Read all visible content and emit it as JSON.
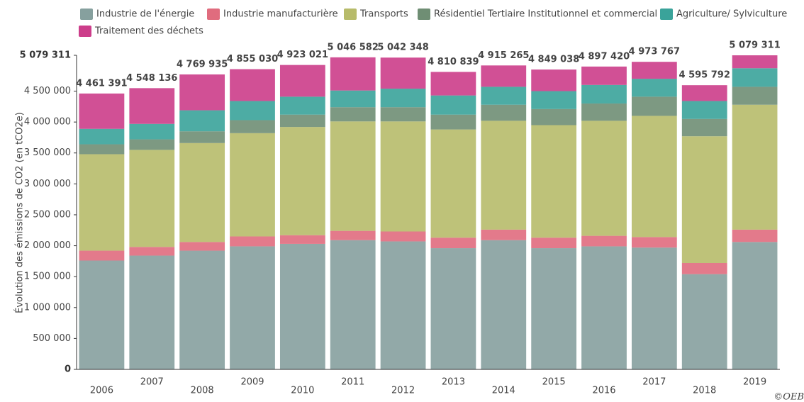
{
  "chart_data": {
    "type": "stacked_bar",
    "y_axis_label": "Évolution des émissions de CO2 (en tCO2e)",
    "copyright": "©OEB",
    "categories": [
      "2006",
      "2007",
      "2008",
      "2009",
      "2010",
      "2011",
      "2012",
      "2013",
      "2014",
      "2015",
      "2016",
      "2017",
      "2018",
      "2019"
    ],
    "series": [
      {
        "name": "Industrie de l'énergie",
        "color": "#86a09e",
        "values": [
          1760000,
          1840000,
          1920000,
          1990000,
          2030000,
          2090000,
          2070000,
          1960000,
          2090000,
          1960000,
          1990000,
          1970000,
          1540000,
          2060000
        ]
      },
      {
        "name": "Industrie manufacturière",
        "color": "#e06c7e",
        "values": [
          160000,
          140000,
          140000,
          160000,
          140000,
          150000,
          160000,
          170000,
          170000,
          170000,
          170000,
          170000,
          180000,
          200000
        ]
      },
      {
        "name": "Transports",
        "color": "#b7bb6a",
        "values": [
          1560000,
          1570000,
          1600000,
          1670000,
          1750000,
          1770000,
          1780000,
          1750000,
          1760000,
          1820000,
          1860000,
          1960000,
          2050000,
          2020000
        ]
      },
      {
        "name": "Résidentiel Tertiaire Institutionnel et commercial",
        "color": "#6f8e74",
        "values": [
          160000,
          170000,
          190000,
          210000,
          200000,
          230000,
          230000,
          240000,
          260000,
          260000,
          280000,
          310000,
          280000,
          290000
        ]
      },
      {
        "name": "Agriculture/ Sylviculture",
        "color": "#3aa39a",
        "values": [
          250000,
          250000,
          340000,
          310000,
          290000,
          270000,
          300000,
          310000,
          290000,
          290000,
          300000,
          290000,
          290000,
          300000
        ]
      },
      {
        "name": "Traitement des déchets",
        "color": "#cc3d8a",
        "values": [
          571391,
          578136,
          579935,
          515030,
          513021,
          536582,
          502348,
          380839,
          345265,
          349038,
          297420,
          273767,
          255792,
          209311
        ]
      }
    ],
    "totals": [
      4461391,
      4548136,
      4769935,
      4855030,
      4923021,
      5046582,
      5042348,
      4810839,
      4915265,
      4849038,
      4897420,
      4973767,
      4595792,
      5079311
    ],
    "total_labels": [
      "4 461 391",
      "4 548 136",
      "4 769 935",
      "4 855 030",
      "4 923 021",
      "5 046 582",
      "5 042 348",
      "4 810 839",
      "4 915 265",
      "4 849 038",
      "4 897 420",
      "4 973 767",
      "4 595 792",
      "5 079 311"
    ],
    "ylim": [
      0,
      5079311
    ],
    "yticks": [
      0,
      {
        "value": 500000,
        "label": "500 000"
      },
      {
        "value": 1000000,
        "label": "1 000 000"
      },
      {
        "value": 1500000,
        "label": "1 500 000"
      },
      {
        "value": 2000000,
        "label": "2 000 000"
      },
      {
        "value": 2500000,
        "label": "2 500 000"
      },
      {
        "value": 3000000,
        "label": "3 000 000"
      },
      {
        "value": 3500000,
        "label": "3 500 000"
      },
      {
        "value": 4000000,
        "label": "4 000 000"
      },
      {
        "value": 4500000,
        "label": "4 500 000"
      },
      {
        "value": 5079311,
        "label": "5 079 311"
      }
    ],
    "grid": false
  }
}
